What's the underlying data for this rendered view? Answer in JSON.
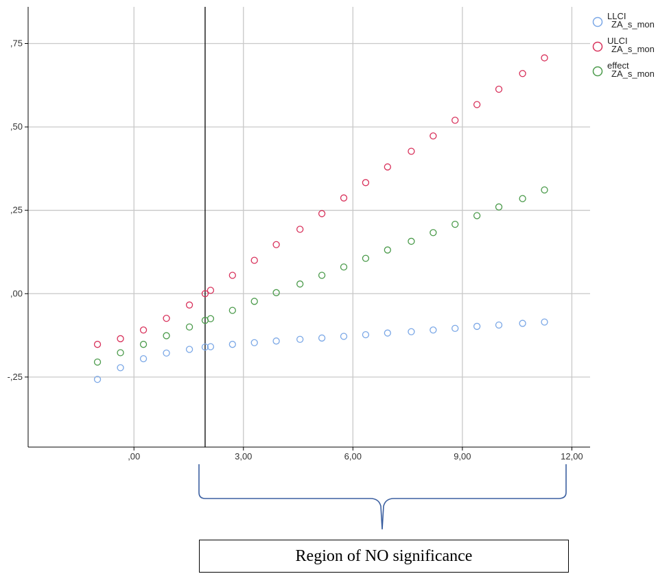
{
  "chart_data": {
    "type": "scatter",
    "xlabel": "",
    "ylabel": "",
    "xlim": [
      -2.9,
      12.5
    ],
    "ylim": [
      -0.46,
      0.86
    ],
    "x_ticks": [
      0,
      3,
      6,
      9,
      12
    ],
    "x_tick_labels": [
      ",00",
      "3,00",
      "6,00",
      "9,00",
      "12,00"
    ],
    "y_ticks": [
      -0.25,
      0,
      0.25,
      0.5,
      0.75
    ],
    "y_tick_labels": [
      "-,25",
      ",00",
      ",25",
      ",50",
      ",75"
    ],
    "grid": true,
    "legend_position": "top-right",
    "x": [
      -1.0,
      -0.37,
      0.26,
      0.89,
      1.52,
      1.95,
      2.1,
      2.7,
      3.3,
      3.9,
      4.55,
      5.15,
      5.75,
      6.35,
      6.95,
      7.6,
      8.2,
      8.8,
      9.4,
      10.0,
      10.65,
      11.25
    ],
    "series": [
      {
        "name": "LLCI\nZA_s_mon",
        "color": "#7aa7e6",
        "values": [
          -0.257,
          -0.222,
          -0.195,
          -0.178,
          -0.167,
          -0.16,
          -0.159,
          -0.152,
          -0.147,
          -0.142,
          -0.137,
          -0.133,
          -0.128,
          -0.123,
          -0.118,
          -0.114,
          -0.109,
          -0.104,
          -0.098,
          -0.094,
          -0.089,
          -0.085
        ]
      },
      {
        "name": "ULCI\nZA_s_mon",
        "color": "#d8305a",
        "values": [
          -0.152,
          -0.135,
          -0.109,
          -0.074,
          -0.034,
          0.0,
          0.01,
          0.055,
          0.1,
          0.147,
          0.193,
          0.24,
          0.287,
          0.333,
          0.38,
          0.427,
          0.473,
          0.52,
          0.567,
          0.613,
          0.66,
          0.707
        ]
      },
      {
        "name": "effect\nZA_s_mon",
        "color": "#4a9a4a",
        "values": [
          -0.205,
          -0.177,
          -0.152,
          -0.126,
          -0.1,
          -0.08,
          -0.075,
          -0.05,
          -0.023,
          0.003,
          0.029,
          0.055,
          0.08,
          0.106,
          0.131,
          0.157,
          0.183,
          0.208,
          0.234,
          0.26,
          0.285,
          0.311
        ]
      }
    ],
    "reference_line_x": 1.95,
    "annotations": [
      "Region of NO significance"
    ]
  }
}
